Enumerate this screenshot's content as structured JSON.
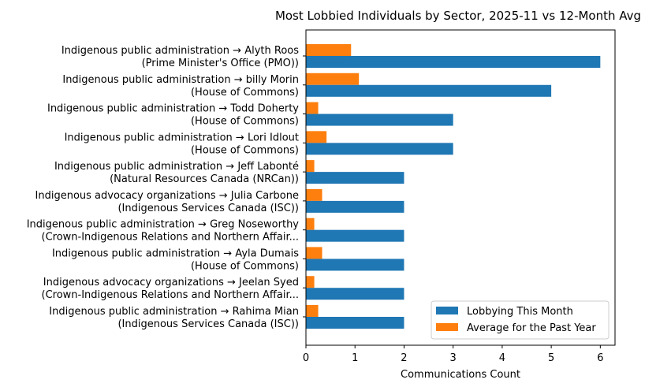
{
  "chart_data": {
    "type": "bar",
    "orientation": "horizontal",
    "title": "Most Lobbied Individuals by Sector, 2025-11 vs 12-Month Avg",
    "xlabel": "Communications Count",
    "ylabel": "",
    "xlim": [
      0,
      6.3
    ],
    "xticks": [
      "0",
      "1",
      "2",
      "3",
      "4",
      "5",
      "6"
    ],
    "legend_position": "bottom-right",
    "grid": false,
    "categories": [
      [
        "Indigenous public administration → Alyth Roos",
        "(Prime Minister's Office (PMO))"
      ],
      [
        "Indigenous public administration → billy  Morin",
        "(House of Commons)"
      ],
      [
        "Indigenous public administration → Todd Doherty",
        "(House of Commons)"
      ],
      [
        "Indigenous public administration → Lori Idlout",
        "(House of Commons)"
      ],
      [
        "Indigenous public administration → Jeff Labonté",
        "(Natural Resources Canada (NRCan))"
      ],
      [
        "Indigenous advocacy organizations → Julia Carbone",
        "(Indigenous Services Canada (ISC))"
      ],
      [
        "Indigenous public administration → Greg Noseworthy",
        "(Crown-Indigenous Relations and Northern Affair..."
      ],
      [
        "Indigenous public administration → Ayla Dumais",
        "(House of Commons)"
      ],
      [
        "Indigenous advocacy organizations → Jeelan Syed",
        "(Crown-Indigenous Relations and Northern Affair..."
      ],
      [
        "Indigenous public administration → Rahima Mian",
        "(Indigenous Services Canada (ISC))"
      ]
    ],
    "series": [
      {
        "name": "Lobbying This Month",
        "color": "#1f77b4",
        "values": [
          6,
          5,
          3,
          3,
          2,
          2,
          2,
          2,
          2,
          2
        ]
      },
      {
        "name": "Average for the Past Year",
        "color": "#ff7f0e",
        "values": [
          0.92,
          1.08,
          0.25,
          0.42,
          0.17,
          0.33,
          0.17,
          0.33,
          0.17,
          0.25
        ]
      }
    ]
  }
}
